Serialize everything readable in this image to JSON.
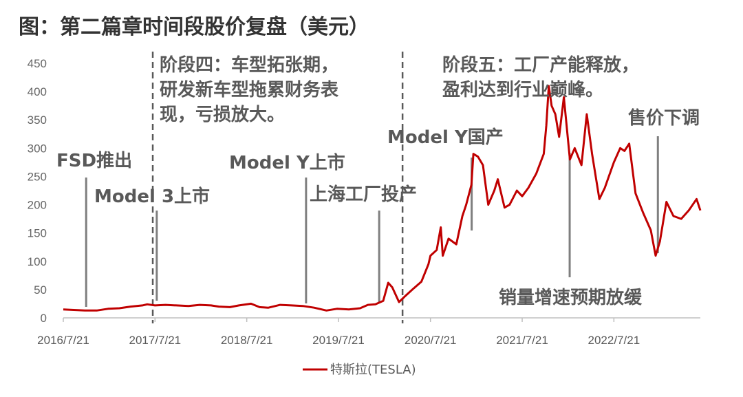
{
  "title": "图：第二篇章时间段股价复盘（美元）",
  "legend_label": "特斯拉(TESLA)",
  "colors": {
    "series": "#c00000",
    "annotation": "#595959",
    "axis": "#bfbfbf"
  },
  "chart_data": {
    "type": "line",
    "title": "图：第二篇章时间段股价复盘（美元）",
    "xlabel": "",
    "ylabel": "",
    "ylim": [
      0,
      450
    ],
    "yticks": [
      0,
      50,
      100,
      150,
      200,
      250,
      300,
      350,
      400,
      450
    ],
    "xlim": [
      "2016-07-21",
      "2023-06-30"
    ],
    "xticks": [
      "2016/7/21",
      "2017/7/21",
      "2018/7/21",
      "2019/7/21",
      "2020/7/21",
      "2021/7/21",
      "2022/7/21"
    ],
    "grid": false,
    "legend_position": "bottom",
    "series": [
      {
        "name": "特斯拉(TESLA)",
        "x": [
          "2016-07-21",
          "2016-09-01",
          "2016-10-15",
          "2016-12-01",
          "2017-01-15",
          "2017-03-01",
          "2017-04-15",
          "2017-06-01",
          "2017-06-20",
          "2017-07-21",
          "2017-09-01",
          "2017-10-15",
          "2017-12-01",
          "2018-01-15",
          "2018-03-01",
          "2018-04-01",
          "2018-05-15",
          "2018-06-20",
          "2018-08-07",
          "2018-09-10",
          "2018-10-15",
          "2018-12-01",
          "2019-01-15",
          "2019-03-01",
          "2019-04-15",
          "2019-06-03",
          "2019-07-15",
          "2019-09-01",
          "2019-10-15",
          "2019-11-15",
          "2019-12-15",
          "2020-01-15",
          "2020-02-04",
          "2020-02-20",
          "2020-03-18",
          "2020-04-15",
          "2020-05-15",
          "2020-06-15",
          "2020-07-13",
          "2020-07-21",
          "2020-08-15",
          "2020-08-31",
          "2020-09-08",
          "2020-10-01",
          "2020-11-01",
          "2020-11-25",
          "2020-12-10",
          "2020-12-31",
          "2021-01-08",
          "2021-01-26",
          "2021-02-15",
          "2021-03-08",
          "2021-04-01",
          "2021-04-15",
          "2021-05-12",
          "2021-06-01",
          "2021-06-30",
          "2021-07-21",
          "2021-08-15",
          "2021-09-15",
          "2021-10-15",
          "2021-10-25",
          "2021-11-04",
          "2021-11-15",
          "2021-11-30",
          "2021-12-15",
          "2022-01-03",
          "2022-01-27",
          "2022-02-15",
          "2022-03-14",
          "2022-04-04",
          "2022-04-25",
          "2022-05-24",
          "2022-06-15",
          "2022-07-01",
          "2022-07-21",
          "2022-08-15",
          "2022-09-01",
          "2022-09-20",
          "2022-10-15",
          "2022-11-15",
          "2022-12-15",
          "2023-01-03",
          "2023-01-20",
          "2023-02-15",
          "2023-03-15",
          "2023-04-15",
          "2023-05-15",
          "2023-06-15",
          "2023-06-30"
        ],
        "values": [
          15,
          14,
          13,
          13,
          16,
          17,
          20,
          22,
          24,
          22,
          23,
          22,
          21,
          23,
          22,
          20,
          19,
          22,
          25,
          19,
          18,
          23,
          22,
          21,
          18,
          13,
          16,
          15,
          17,
          23,
          24,
          30,
          62,
          54,
          28,
          40,
          52,
          64,
          95,
          110,
          120,
          160,
          110,
          140,
          130,
          180,
          200,
          235,
          290,
          285,
          270,
          200,
          225,
          245,
          195,
          200,
          225,
          215,
          230,
          255,
          290,
          340,
          410,
          375,
          360,
          320,
          390,
          280,
          300,
          270,
          360,
          290,
          210,
          230,
          250,
          275,
          300,
          295,
          308,
          220,
          185,
          155,
          110,
          135,
          205,
          180,
          175,
          190,
          210,
          190
        ]
      }
    ],
    "annotations": [
      {
        "label": "FSD推出",
        "date": "2016-10-20"
      },
      {
        "label": "Model 3上市",
        "date": "2017-07-28"
      },
      {
        "label": "Model Y上市",
        "date": "2019-03-14"
      },
      {
        "label": "上海工厂投产",
        "date": "2019-12-30"
      },
      {
        "label": "Model Y国产",
        "date": "2021-01-01"
      },
      {
        "label": "销量增速预期放缓",
        "date": "2022-01-26"
      },
      {
        "label": "售价下调",
        "date": "2023-01-12"
      }
    ],
    "phase_dividers": [
      {
        "date": "2017-07-12",
        "label": "阶段四：车型拓张期，研发新车型拖累财务表现，亏损放大。"
      },
      {
        "date": "2020-04-01",
        "label": "阶段五：工厂产能释放，盈利达到行业巅峰。"
      }
    ]
  },
  "text": {
    "phase4_line1": "阶段四：车型拓张期，",
    "phase4_line2": "研发新车型拖累财务表",
    "phase4_line3": "现，亏损放大。",
    "phase5_line1": "阶段五：工厂产能释放，",
    "phase5_line2": "盈利达到行业巅峰。",
    "fsd": "FSD推出",
    "model3": "Model 3上市",
    "modely_launch": "Model Y上市",
    "shanghai": "上海工厂投产",
    "modely_domestic": "Model Y国产",
    "slowdown": "销量增速预期放缓",
    "price_cut": "售价下调"
  }
}
